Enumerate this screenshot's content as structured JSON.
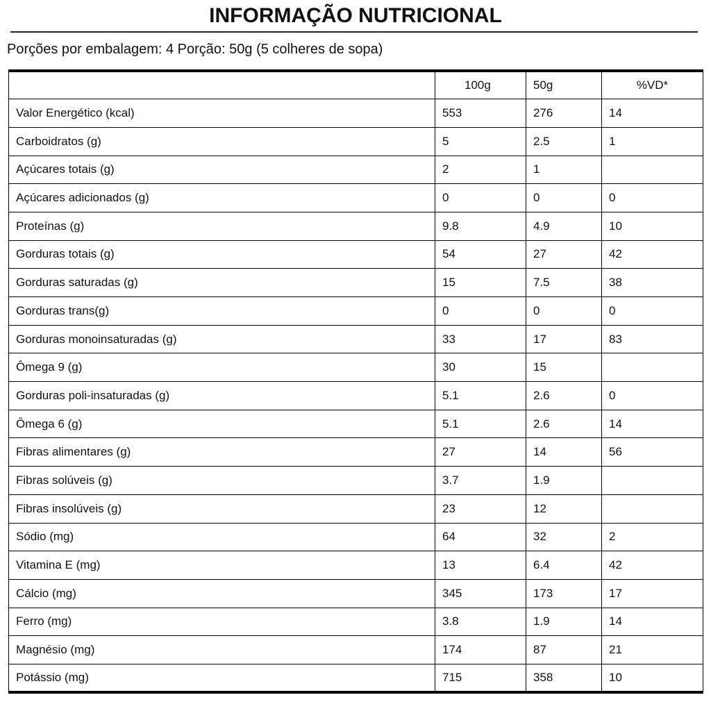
{
  "title": "INFORMAÇÃO NUTRICIONAL",
  "subtitle": "Porções por embalagem: 4 Porção: 50g (5 colheres de sopa)",
  "table": {
    "header": [
      null,
      "100g",
      "50g",
      "%VD*"
    ],
    "rows": [
      [
        "Valor Energético (kcal)",
        553,
        276,
        14
      ],
      [
        "Carboidratos (g)",
        5,
        2.5,
        1
      ],
      [
        "Açúcares totais (g)",
        2,
        1,
        null
      ],
      [
        "Açúcares adicionados (g)",
        0,
        0,
        0
      ],
      [
        "Proteínas (g)",
        9.8,
        4.9,
        10
      ],
      [
        "Gorduras totais (g)",
        54,
        27,
        42
      ],
      [
        "Gorduras saturadas (g)",
        15,
        7.5,
        38
      ],
      [
        "Gorduras trans(g)",
        0,
        0,
        0
      ],
      [
        "Gorduras monoinsaturadas (g)",
        33,
        17,
        83
      ],
      [
        "Ômega 9 (g)",
        30,
        15,
        null
      ],
      [
        "Gorduras poli-insaturadas (g)",
        5.1,
        2.6,
        0
      ],
      [
        "Ômega 6 (g)",
        5.1,
        2.6,
        14
      ],
      [
        "Fibras alimentares (g)",
        27,
        14,
        56
      ],
      [
        "Fibras solúveis (g)",
        3.7,
        1.9,
        null
      ],
      [
        "Fibras insolúveis (g)",
        23,
        12,
        null
      ],
      [
        "Sódio (mg)",
        64,
        32,
        2
      ],
      [
        "Vitamina E (mg)",
        13,
        6.4,
        42
      ],
      [
        "Cálcio (mg)",
        345,
        173,
        17
      ],
      [
        "Ferro (mg)",
        3.8,
        1.9,
        14
      ],
      [
        "Magnésio (mg)",
        174,
        87,
        21
      ],
      [
        "Potássio (mg)",
        715,
        358,
        10
      ]
    ]
  }
}
